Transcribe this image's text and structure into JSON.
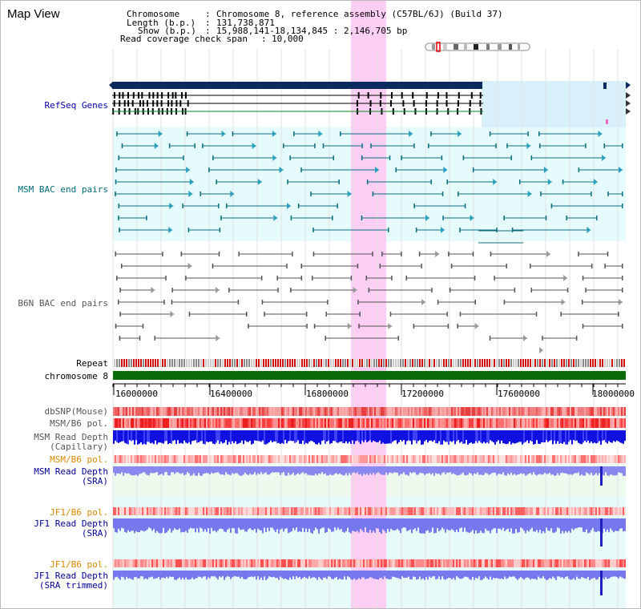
{
  "title": "Map View",
  "info": {
    "chromosome_label": "Chromosome",
    "chromosome_value": "Chromosome 8, reference assembly (C57BL/6J) (Build 37)",
    "length_label": "Length (b.p.)",
    "length_value": "131,738,871",
    "show_label": "Show (b.p.)",
    "show_value": "15,988,141-18,134,845 : 2,146,705 bp",
    "coverage_label": "Read coverage check span",
    "coverage_value": "10,000"
  },
  "tracks": {
    "refseq": "RefSeq Genes",
    "msm_bac": "MSM BAC end pairs",
    "b6n_bac": "B6N BAC end pairs",
    "repeat": "Repeat",
    "chromosome": "chromosome 8",
    "dbsnp": "dbSNP(Mouse)",
    "msm_b6_pol": "MSM/B6 pol.",
    "msm_depth_cap_1": "MSM Read Depth",
    "msm_depth_cap_2": "(Capillary)",
    "msm_b6_pol_sra": "MSM/B6 pol.",
    "msm_depth_sra_1": "MSM Read Depth",
    "msm_depth_sra_2": "(SRA)",
    "jf1_b6_pol": "JF1/B6 pol.",
    "jf1_depth_1": "JF1 Read Depth",
    "jf1_depth_2": "(SRA)",
    "jf1_b6_pol_trim": "JF1/B6 pol.",
    "jf1_trim_1": "JF1 Read Depth",
    "jf1_trim_2": "(SRA trimmed)"
  },
  "axis_ticks": [
    "16000000",
    "16400000",
    "16800000",
    "17200000",
    "17600000",
    "18000000"
  ],
  "colors": {
    "refseq_label": "#0000aa",
    "msm_label": "#006a7a",
    "b6n_label": "#555555",
    "highlight": "#ff80ff",
    "orange_label": "#dd8800",
    "blue_label": "#000099"
  }
}
